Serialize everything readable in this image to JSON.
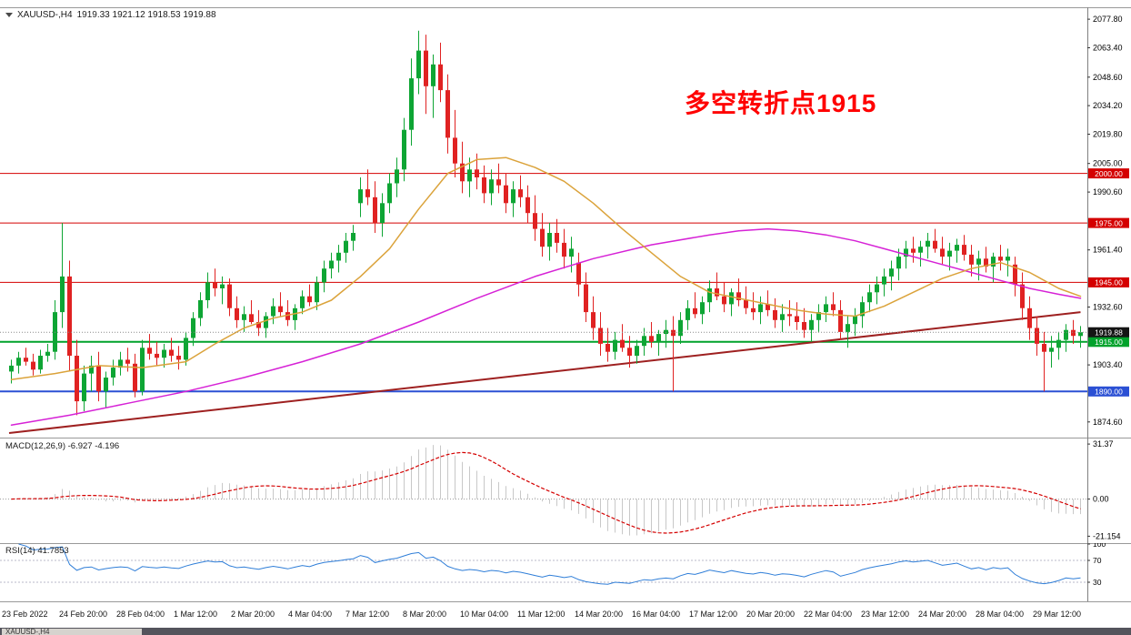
{
  "header": {
    "symbol": "XAUUSD-,H4",
    "ohlc": "1919.33 1921.12 1918.53 1919.88"
  },
  "annotation": {
    "text": "多空转折点1915",
    "color": "#ff0000"
  },
  "footer": {
    "tab": "XAUUSD-,H4"
  },
  "chart_data": {
    "type": "candlestick",
    "symbol": "XAUUSD",
    "timeframe": "H4",
    "ylim": [
      1869,
      2082
    ],
    "time_ticks": [
      "23 Feb 2022",
      "24 Feb 20:00",
      "28 Feb 04:00",
      "1 Mar 12:00",
      "2 Mar 20:00",
      "4 Mar 04:00",
      "7 Mar 12:00",
      "8 Mar 20:00",
      "10 Mar 04:00",
      "11 Mar 12:00",
      "14 Mar 20:00",
      "16 Mar 04:00",
      "17 Mar 12:00",
      "20 Mar 20:00",
      "22 Mar 04:00",
      "23 Mar 12:00",
      "24 Mar 20:00",
      "28 Mar 04:00",
      "29 Mar 12:00"
    ],
    "price_axis": [
      {
        "v": 2077.8,
        "label": "2077.80"
      },
      {
        "v": 2063.4,
        "label": "2063.40"
      },
      {
        "v": 2048.6,
        "label": "2048.60"
      },
      {
        "v": 2034.2,
        "label": "2034.20"
      },
      {
        "v": 2019.8,
        "label": "2019.80"
      },
      {
        "v": 2005.0,
        "label": "2005.00"
      },
      {
        "v": 1990.6,
        "label": "1990.60"
      },
      {
        "v": 1961.4,
        "label": "1961.40"
      },
      {
        "v": 1932.6,
        "label": "1932.60"
      },
      {
        "v": 1903.4,
        "label": "1903.40"
      },
      {
        "v": 1874.6,
        "label": "1874.60"
      }
    ],
    "levels": [
      {
        "price": 2000.0,
        "label": "2000.00",
        "color": "#d40000",
        "badge_bg": "#d40000",
        "width": 1
      },
      {
        "price": 1975.0,
        "label": "1975.00",
        "color": "#d40000",
        "badge_bg": "#d40000",
        "width": 1
      },
      {
        "price": 1945.0,
        "label": "1945.00",
        "color": "#d40000",
        "badge_bg": "#d40000",
        "width": 1
      },
      {
        "price": 1915.0,
        "label": "1915.00",
        "color": "#00a22b",
        "badge_bg": "#00a22b",
        "width": 2
      },
      {
        "price": 1890.0,
        "label": "1890.00",
        "color": "#2b50d4",
        "badge_bg": "#2b50d4",
        "width": 2
      }
    ],
    "current_price": {
      "value": 1919.88,
      "label": "1919.88",
      "badge_bg": "#141414",
      "line_color": "#8a8a8a"
    },
    "colors": {
      "up": "#0ea534",
      "down": "#e02222"
    },
    "candles": [
      [
        1900,
        1906,
        1894,
        1903
      ],
      [
        1903,
        1910,
        1899,
        1907
      ],
      [
        1907,
        1912,
        1903,
        1905
      ],
      [
        1905,
        1909,
        1898,
        1901
      ],
      [
        1901,
        1911,
        1899,
        1908
      ],
      [
        1908,
        1914,
        1905,
        1910
      ],
      [
        1910,
        1936,
        1906,
        1930
      ],
      [
        1930,
        1975,
        1922,
        1948
      ],
      [
        1948,
        1956,
        1900,
        1908
      ],
      [
        1908,
        1916,
        1878,
        1885
      ],
      [
        1885,
        1903,
        1880,
        1899
      ],
      [
        1899,
        1908,
        1890,
        1903
      ],
      [
        1903,
        1910,
        1885,
        1890
      ],
      [
        1890,
        1900,
        1882,
        1897
      ],
      [
        1897,
        1906,
        1893,
        1902
      ],
      [
        1902,
        1910,
        1898,
        1906
      ],
      [
        1906,
        1912,
        1900,
        1904
      ],
      [
        1904,
        1909,
        1887,
        1890
      ],
      [
        1890,
        1916,
        1888,
        1912
      ],
      [
        1912,
        1919,
        1906,
        1909
      ],
      [
        1909,
        1915,
        1903,
        1907
      ],
      [
        1907,
        1914,
        1902,
        1911
      ],
      [
        1911,
        1917,
        1905,
        1908
      ],
      [
        1908,
        1913,
        1901,
        1906
      ],
      [
        1906,
        1920,
        1903,
        1917
      ],
      [
        1917,
        1930,
        1913,
        1927
      ],
      [
        1927,
        1940,
        1923,
        1936
      ],
      [
        1936,
        1950,
        1932,
        1945
      ],
      [
        1945,
        1952,
        1938,
        1942
      ],
      [
        1942,
        1948,
        1934,
        1944
      ],
      [
        1944,
        1947,
        1928,
        1932
      ],
      [
        1932,
        1938,
        1922,
        1926
      ],
      [
        1926,
        1933,
        1920,
        1929
      ],
      [
        1929,
        1936,
        1924,
        1925
      ],
      [
        1925,
        1931,
        1918,
        1922
      ],
      [
        1922,
        1930,
        1917,
        1928
      ],
      [
        1928,
        1937,
        1924,
        1933
      ],
      [
        1933,
        1940,
        1928,
        1930
      ],
      [
        1930,
        1936,
        1923,
        1926
      ],
      [
        1926,
        1934,
        1921,
        1932
      ],
      [
        1932,
        1941,
        1929,
        1938
      ],
      [
        1938,
        1944,
        1933,
        1935
      ],
      [
        1935,
        1948,
        1931,
        1945
      ],
      [
        1945,
        1956,
        1940,
        1952
      ],
      [
        1952,
        1960,
        1947,
        1956
      ],
      [
        1956,
        1964,
        1950,
        1960
      ],
      [
        1960,
        1970,
        1955,
        1966
      ],
      [
        1966,
        1974,
        1961,
        1970
      ],
      [
        1985,
        1998,
        1978,
        1992
      ],
      [
        1992,
        2002,
        1984,
        1988
      ],
      [
        1988,
        1996,
        1970,
        1975
      ],
      [
        1975,
        1990,
        1968,
        1985
      ],
      [
        1985,
        2000,
        1980,
        1995
      ],
      [
        1995,
        2008,
        1988,
        2002
      ],
      [
        2002,
        2028,
        1996,
        2022
      ],
      [
        2022,
        2058,
        2014,
        2048
      ],
      [
        2048,
        2072,
        2040,
        2062
      ],
      [
        2062,
        2070,
        2030,
        2044
      ],
      [
        2044,
        2060,
        2028,
        2055
      ],
      [
        2055,
        2066,
        2036,
        2042
      ],
      [
        2042,
        2050,
        2010,
        2018
      ],
      [
        2018,
        2032,
        1998,
        2005
      ],
      [
        2005,
        2016,
        1990,
        1996
      ],
      [
        1996,
        2008,
        1988,
        2002
      ],
      [
        2002,
        2010,
        1992,
        1998
      ],
      [
        1998,
        2004,
        1985,
        1990
      ],
      [
        1990,
        2002,
        1984,
        1997
      ],
      [
        1997,
        2005,
        1990,
        1994
      ],
      [
        1994,
        2000,
        1980,
        1985
      ],
      [
        1985,
        1996,
        1978,
        1992
      ],
      [
        1992,
        1999,
        1983,
        1988
      ],
      [
        1988,
        1994,
        1975,
        1980
      ],
      [
        1980,
        1989,
        1966,
        1972
      ],
      [
        1972,
        1980,
        1958,
        1963
      ],
      [
        1963,
        1975,
        1956,
        1970
      ],
      [
        1970,
        1977,
        1960,
        1965
      ],
      [
        1965,
        1972,
        1952,
        1958
      ],
      [
        1958,
        1968,
        1950,
        1962
      ],
      [
        1955,
        1960,
        1938,
        1944
      ],
      [
        1944,
        1950,
        1925,
        1930
      ],
      [
        1930,
        1938,
        1916,
        1922
      ],
      [
        1922,
        1930,
        1908,
        1914
      ],
      [
        1914,
        1922,
        1905,
        1910
      ],
      [
        1910,
        1920,
        1906,
        1916
      ],
      [
        1916,
        1924,
        1910,
        1912
      ],
      [
        1912,
        1918,
        1902,
        1908
      ],
      [
        1908,
        1916,
        1904,
        1913
      ],
      [
        1913,
        1922,
        1908,
        1918
      ],
      [
        1918,
        1925,
        1912,
        1915
      ],
      [
        1915,
        1921,
        1908,
        1919
      ],
      [
        1919,
        1926,
        1912,
        1921
      ],
      [
        1921,
        1928,
        1890,
        1918
      ],
      [
        1918,
        1930,
        1914,
        1926
      ],
      [
        1926,
        1936,
        1921,
        1932
      ],
      [
        1932,
        1940,
        1927,
        1929
      ],
      [
        1929,
        1938,
        1924,
        1935
      ],
      [
        1935,
        1946,
        1930,
        1942
      ],
      [
        1942,
        1950,
        1936,
        1938
      ],
      [
        1938,
        1945,
        1930,
        1934
      ],
      [
        1934,
        1942,
        1928,
        1940
      ],
      [
        1940,
        1947,
        1933,
        1936
      ],
      [
        1936,
        1943,
        1929,
        1932
      ],
      [
        1932,
        1940,
        1926,
        1930
      ],
      [
        1930,
        1938,
        1924,
        1934
      ],
      [
        1934,
        1941,
        1928,
        1931
      ],
      [
        1931,
        1937,
        1922,
        1926
      ],
      [
        1926,
        1934,
        1920,
        1929
      ],
      [
        1929,
        1936,
        1923,
        1928
      ],
      [
        1928,
        1935,
        1921,
        1925
      ],
      [
        1925,
        1932,
        1917,
        1921
      ],
      [
        1921,
        1929,
        1915,
        1926
      ],
      [
        1926,
        1934,
        1920,
        1930
      ],
      [
        1930,
        1938,
        1925,
        1934
      ],
      [
        1934,
        1940,
        1928,
        1931
      ],
      [
        1931,
        1936,
        1916,
        1920
      ],
      [
        1920,
        1928,
        1912,
        1924
      ],
      [
        1924,
        1932,
        1918,
        1928
      ],
      [
        1928,
        1938,
        1922,
        1935
      ],
      [
        1935,
        1944,
        1930,
        1940
      ],
      [
        1940,
        1948,
        1934,
        1944
      ],
      [
        1944,
        1952,
        1938,
        1948
      ],
      [
        1948,
        1956,
        1941,
        1952
      ],
      [
        1952,
        1962,
        1946,
        1958
      ],
      [
        1958,
        1966,
        1952,
        1962
      ],
      [
        1962,
        1968,
        1955,
        1960
      ],
      [
        1960,
        1966,
        1953,
        1963
      ],
      [
        1963,
        1970,
        1957,
        1966
      ],
      [
        1966,
        1972,
        1960,
        1962
      ],
      [
        1962,
        1968,
        1954,
        1958
      ],
      [
        1958,
        1965,
        1951,
        1961
      ],
      [
        1961,
        1967,
        1955,
        1964
      ],
      [
        1964,
        1969,
        1956,
        1959
      ],
      [
        1959,
        1964,
        1948,
        1954
      ],
      [
        1954,
        1961,
        1946,
        1957
      ],
      [
        1957,
        1963,
        1950,
        1953
      ],
      [
        1953,
        1960,
        1945,
        1958
      ],
      [
        1958,
        1964,
        1951,
        1956
      ],
      [
        1956,
        1962,
        1948,
        1958
      ],
      [
        1954,
        1958,
        1938,
        1944
      ],
      [
        1944,
        1950,
        1926,
        1932
      ],
      [
        1932,
        1938,
        1916,
        1922
      ],
      [
        1922,
        1928,
        1908,
        1914
      ],
      [
        1914,
        1920,
        1890,
        1910
      ],
      [
        1910,
        1918,
        1902,
        1912
      ],
      [
        1912,
        1920,
        1906,
        1916
      ],
      [
        1916,
        1924,
        1910,
        1921
      ],
      [
        1921,
        1926,
        1914,
        1918
      ],
      [
        1918,
        1923,
        1912,
        1919.88
      ]
    ],
    "indicators": {
      "ma_fast": {
        "name": "ma-fast",
        "color": "#dba33b",
        "points": [
          [
            0,
            1896
          ],
          [
            6,
            1899
          ],
          [
            12,
            1903
          ],
          [
            18,
            1902
          ],
          [
            24,
            1905
          ],
          [
            28,
            1914
          ],
          [
            32,
            1922
          ],
          [
            36,
            1927
          ],
          [
            40,
            1930
          ],
          [
            44,
            1936
          ],
          [
            48,
            1948
          ],
          [
            52,
            1962
          ],
          [
            56,
            1982
          ],
          [
            60,
            2000
          ],
          [
            64,
            2007
          ],
          [
            68,
            2008
          ],
          [
            72,
            2003
          ],
          [
            76,
            1996
          ],
          [
            80,
            1985
          ],
          [
            84,
            1972
          ],
          [
            88,
            1960
          ],
          [
            92,
            1948
          ],
          [
            96,
            1940
          ],
          [
            100,
            1937
          ],
          [
            104,
            1934
          ],
          [
            108,
            1931
          ],
          [
            112,
            1929
          ],
          [
            116,
            1928
          ],
          [
            120,
            1933
          ],
          [
            124,
            1940
          ],
          [
            128,
            1947
          ],
          [
            132,
            1952
          ],
          [
            136,
            1955
          ],
          [
            140,
            1950
          ],
          [
            144,
            1942
          ],
          [
            147,
            1938
          ]
        ]
      },
      "ma_slow": {
        "name": "ma-slow",
        "color": "#d622d6",
        "points": [
          [
            0,
            1873
          ],
          [
            8,
            1878
          ],
          [
            16,
            1884
          ],
          [
            24,
            1890
          ],
          [
            32,
            1897
          ],
          [
            40,
            1905
          ],
          [
            48,
            1914
          ],
          [
            56,
            1925
          ],
          [
            64,
            1937
          ],
          [
            72,
            1948
          ],
          [
            80,
            1957
          ],
          [
            88,
            1964
          ],
          [
            96,
            1969
          ],
          [
            100,
            1971
          ],
          [
            104,
            1972
          ],
          [
            108,
            1971
          ],
          [
            112,
            1969
          ],
          [
            116,
            1966
          ],
          [
            120,
            1962
          ],
          [
            124,
            1958
          ],
          [
            128,
            1954
          ],
          [
            132,
            1950
          ],
          [
            136,
            1946
          ],
          [
            140,
            1942
          ],
          [
            144,
            1939
          ],
          [
            147,
            1937
          ]
        ]
      },
      "trendline": {
        "color": "#9e2020",
        "from": [
          0,
          1869
        ],
        "to": [
          147,
          1930
        ]
      }
    },
    "macd": {
      "label": "MACD(12,26,9) -6.927 -4.196",
      "params": [
        12,
        26,
        9
      ],
      "values": [
        -6.927,
        -4.196
      ],
      "axis": [
        {
          "v": 31.37,
          "label": "31.37"
        },
        {
          "v": 0,
          "label": "0.00"
        },
        {
          "v": -21.154,
          "label": "-21.154"
        }
      ],
      "hist_color": "#c8c8c8",
      "signal_color": "#d40000"
    },
    "rsi": {
      "label": "RSI(14) 41.7853",
      "period": 14,
      "value": 41.7853,
      "axis": [
        {
          "v": 100,
          "label": "100"
        },
        {
          "v": 70,
          "label": "70"
        },
        {
          "v": 30,
          "label": "30"
        }
      ],
      "levels": [
        70,
        30
      ],
      "line_color": "#2f7ed8"
    }
  }
}
